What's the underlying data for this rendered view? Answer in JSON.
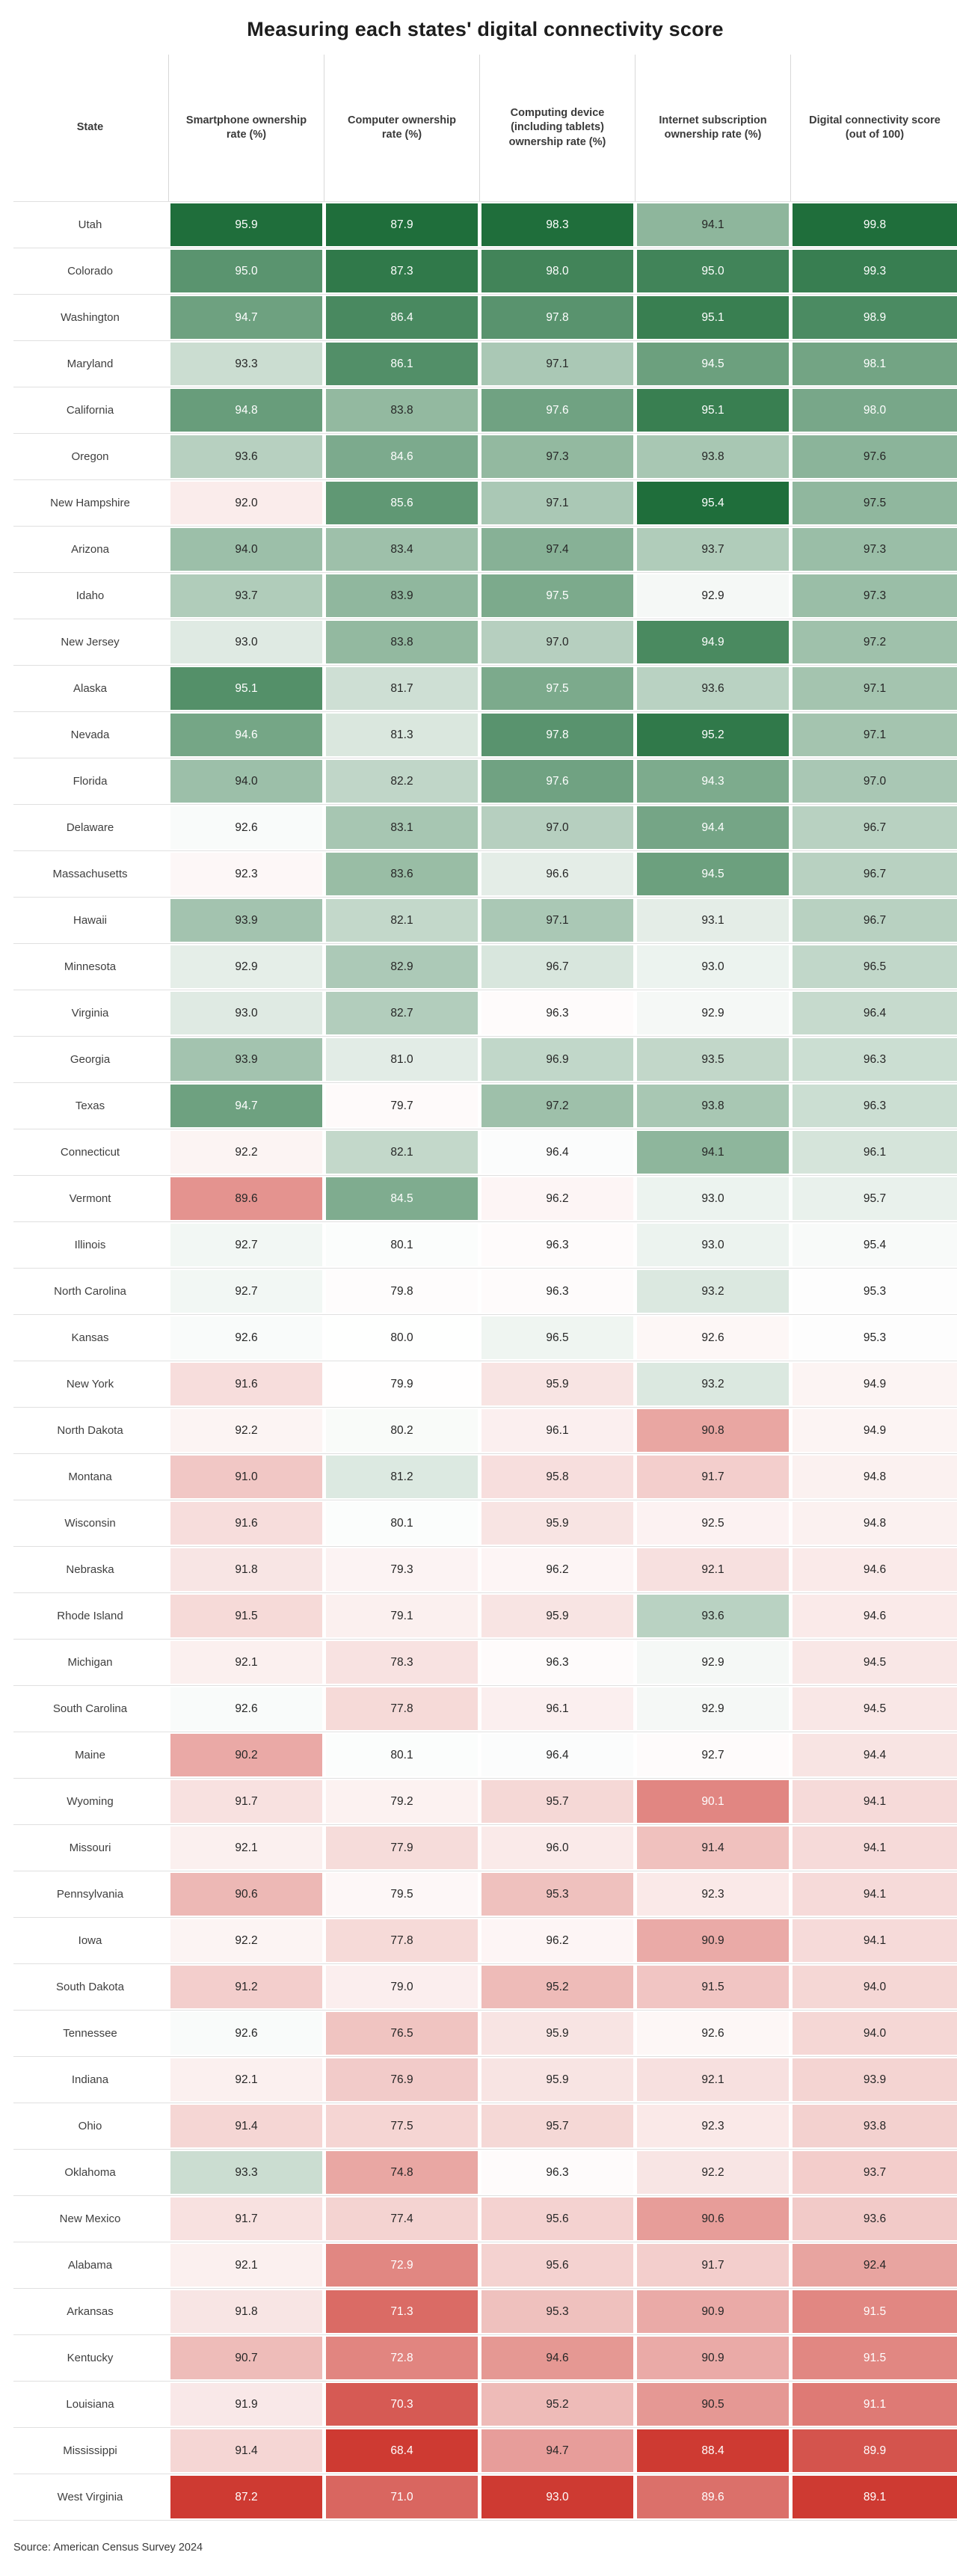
{
  "title": "Measuring each states' digital connectivity score",
  "source_note": "Source: American Census Survey 2024",
  "colors": {
    "max_green": "#1F6E3B",
    "max_red": "#CE3A32",
    "cell_text_dark": "#262626",
    "cell_text_light": "#ffffff",
    "row_divider": "#e0e0e0",
    "header_rule": "#d8d8d8",
    "title_text": "#1d1d1d"
  },
  "chart_data": {
    "type": "heatmap",
    "title": "Measuring each states' digital connectivity score",
    "source": "Source: American Census Survey 2024",
    "legend_position": "none",
    "grid": "row-dividers",
    "color_scale": {
      "palette": "diverging red-white-green",
      "midpoint": "column mean",
      "low_color": "#CE3A32",
      "mid_color": "#ffffff",
      "high_color": "#1F6E3B",
      "white_text_threshold": 0.55
    },
    "columns": [
      {
        "key": "state",
        "label": "State"
      },
      {
        "key": "smartphone",
        "label": "Smartphone ownership rate (%)"
      },
      {
        "key": "computer",
        "label": "Computer ownership rate (%)"
      },
      {
        "key": "computing_device",
        "label": "Computing device (including tablets) ownership rate (%)"
      },
      {
        "key": "internet",
        "label": "Internet subscription ownership rate (%)"
      },
      {
        "key": "score",
        "label": "Digital connectivity score (out of 100)"
      }
    ],
    "rows": [
      [
        "Utah",
        95.9,
        87.9,
        98.3,
        94.1,
        99.8
      ],
      [
        "Colorado",
        95.0,
        87.3,
        98.0,
        95.0,
        99.3
      ],
      [
        "Washington",
        94.7,
        86.4,
        97.8,
        95.1,
        98.9
      ],
      [
        "Maryland",
        93.3,
        86.1,
        97.1,
        94.5,
        98.1
      ],
      [
        "California",
        94.8,
        83.8,
        97.6,
        95.1,
        98.0
      ],
      [
        "Oregon",
        93.6,
        84.6,
        97.3,
        93.8,
        97.6
      ],
      [
        "New Hampshire",
        92.0,
        85.6,
        97.1,
        95.4,
        97.5
      ],
      [
        "Arizona",
        94.0,
        83.4,
        97.4,
        93.7,
        97.3
      ],
      [
        "Idaho",
        93.7,
        83.9,
        97.5,
        92.9,
        97.3
      ],
      [
        "New Jersey",
        93.0,
        83.8,
        97.0,
        94.9,
        97.2
      ],
      [
        "Alaska",
        95.1,
        81.7,
        97.5,
        93.6,
        97.1
      ],
      [
        "Nevada",
        94.6,
        81.3,
        97.8,
        95.2,
        97.1
      ],
      [
        "Florida",
        94.0,
        82.2,
        97.6,
        94.3,
        97.0
      ],
      [
        "Delaware",
        92.6,
        83.1,
        97.0,
        94.4,
        96.7
      ],
      [
        "Massachusetts",
        92.3,
        83.6,
        96.6,
        94.5,
        96.7
      ],
      [
        "Hawaii",
        93.9,
        82.1,
        97.1,
        93.1,
        96.7
      ],
      [
        "Minnesota",
        92.9,
        82.9,
        96.7,
        93.0,
        96.5
      ],
      [
        "Virginia",
        93.0,
        82.7,
        96.3,
        92.9,
        96.4
      ],
      [
        "Georgia",
        93.9,
        81.0,
        96.9,
        93.5,
        96.3
      ],
      [
        "Texas",
        94.7,
        79.7,
        97.2,
        93.8,
        96.3
      ],
      [
        "Connecticut",
        92.2,
        82.1,
        96.4,
        94.1,
        96.1
      ],
      [
        "Vermont",
        89.6,
        84.5,
        96.2,
        93.0,
        95.7
      ],
      [
        "Illinois",
        92.7,
        80.1,
        96.3,
        93.0,
        95.4
      ],
      [
        "North Carolina",
        92.7,
        79.8,
        96.3,
        93.2,
        95.3
      ],
      [
        "Kansas",
        92.6,
        80.0,
        96.5,
        92.6,
        95.3
      ],
      [
        "New York",
        91.6,
        79.9,
        95.9,
        93.2,
        94.9
      ],
      [
        "North Dakota",
        92.2,
        80.2,
        96.1,
        90.8,
        94.9
      ],
      [
        "Montana",
        91.0,
        81.2,
        95.8,
        91.7,
        94.8
      ],
      [
        "Wisconsin",
        91.6,
        80.1,
        95.9,
        92.5,
        94.8
      ],
      [
        "Nebraska",
        91.8,
        79.3,
        96.2,
        92.1,
        94.6
      ],
      [
        "Rhode Island",
        91.5,
        79.1,
        95.9,
        93.6,
        94.6
      ],
      [
        "Michigan",
        92.1,
        78.3,
        96.3,
        92.9,
        94.5
      ],
      [
        "South Carolina",
        92.6,
        77.8,
        96.1,
        92.9,
        94.5
      ],
      [
        "Maine",
        90.2,
        80.1,
        96.4,
        92.7,
        94.4
      ],
      [
        "Wyoming",
        91.7,
        79.2,
        95.7,
        90.1,
        94.1
      ],
      [
        "Missouri",
        92.1,
        77.9,
        96.0,
        91.4,
        94.1
      ],
      [
        "Pennsylvania",
        90.6,
        79.5,
        95.3,
        92.3,
        94.1
      ],
      [
        "Iowa",
        92.2,
        77.8,
        96.2,
        90.9,
        94.1
      ],
      [
        "South Dakota",
        91.2,
        79.0,
        95.2,
        91.5,
        94.0
      ],
      [
        "Tennessee",
        92.6,
        76.5,
        95.9,
        92.6,
        94.0
      ],
      [
        "Indiana",
        92.1,
        76.9,
        95.9,
        92.1,
        93.9
      ],
      [
        "Ohio",
        91.4,
        77.5,
        95.7,
        92.3,
        93.8
      ],
      [
        "Oklahoma",
        93.3,
        74.8,
        96.3,
        92.2,
        93.7
      ],
      [
        "New Mexico",
        91.7,
        77.4,
        95.6,
        90.6,
        93.6
      ],
      [
        "Alabama",
        92.1,
        72.9,
        95.6,
        91.7,
        92.4
      ],
      [
        "Arkansas",
        91.8,
        71.3,
        95.3,
        90.9,
        91.5
      ],
      [
        "Kentucky",
        90.7,
        72.8,
        94.6,
        90.9,
        91.5
      ],
      [
        "Louisiana",
        91.9,
        70.3,
        95.2,
        90.5,
        91.1
      ],
      [
        "Mississippi",
        91.4,
        68.4,
        94.7,
        88.4,
        89.9
      ],
      [
        "West Virginia",
        87.2,
        71.0,
        93.0,
        89.6,
        89.1
      ]
    ]
  }
}
